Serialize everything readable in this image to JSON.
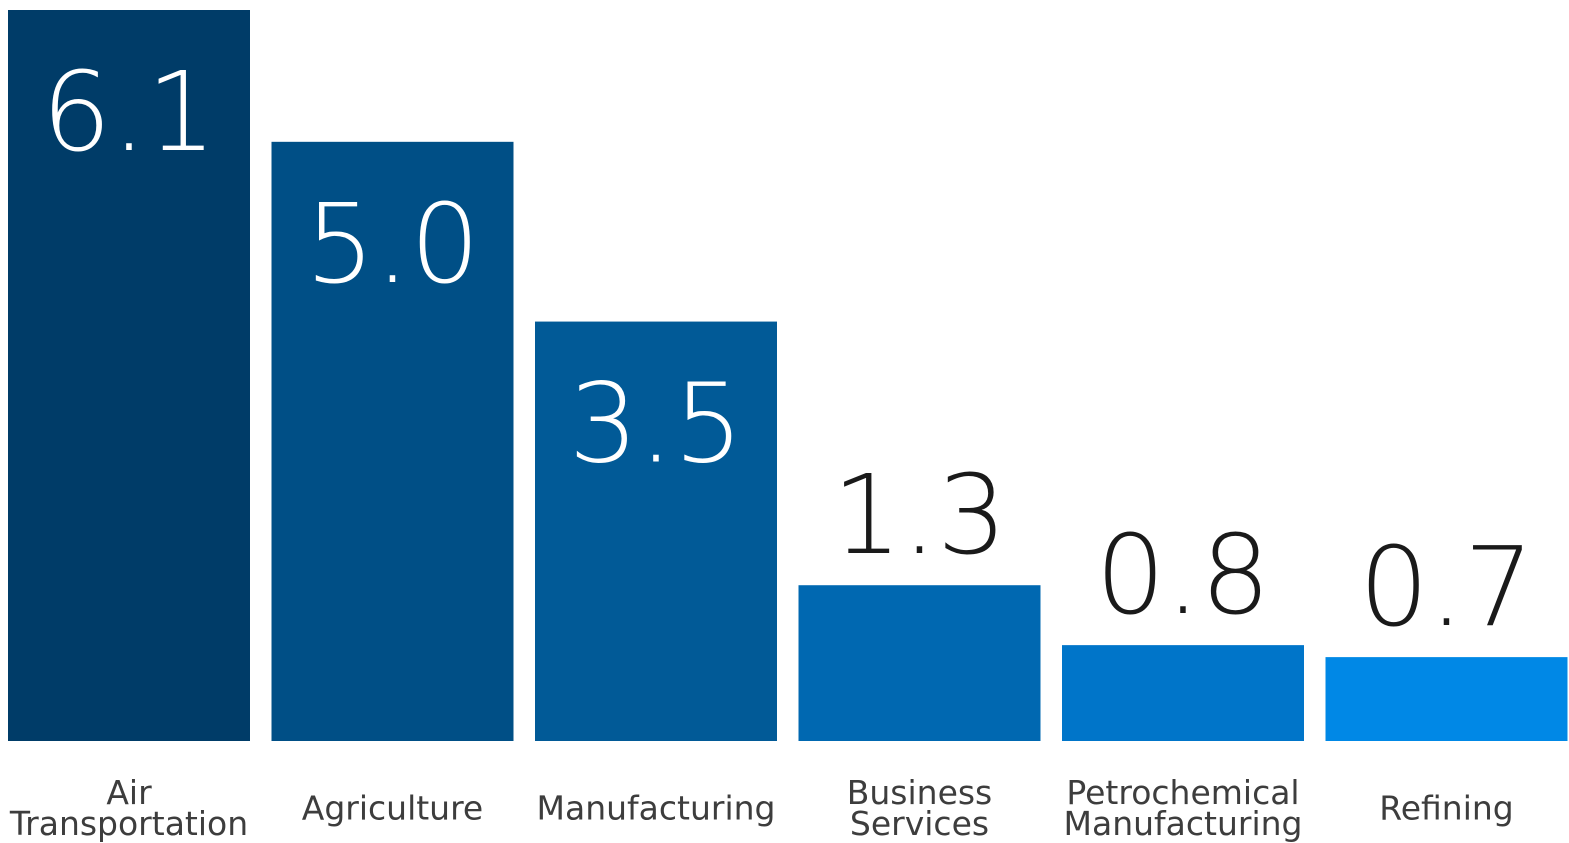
{
  "chart_data": {
    "type": "bar",
    "categories": [
      [
        "Air",
        "Transportation"
      ],
      [
        "Agriculture"
      ],
      [
        "Manufacturing"
      ],
      [
        "Business",
        "Services"
      ],
      [
        "Petrochemical",
        "Manufacturing"
      ],
      [
        "Refining"
      ]
    ],
    "values": [
      6.1,
      5.0,
      3.5,
      1.3,
      0.8,
      0.7
    ],
    "value_labels": [
      "6.1",
      "5.0",
      "3.5",
      "1.3",
      "0.8",
      "0.7"
    ],
    "colors": [
      "#003c68",
      "#004f86",
      "#015a97",
      "#0068b1",
      "#0075c9",
      "#0088e6"
    ],
    "label_inside": [
      true,
      true,
      true,
      false,
      false,
      false
    ],
    "inside_label_color": "#ffffff",
    "outside_label_color": "#1a1a1a",
    "title": "",
    "xlabel": "",
    "ylabel": "",
    "ylim": [
      0,
      6.1
    ],
    "grid": false,
    "legend": "none"
  }
}
